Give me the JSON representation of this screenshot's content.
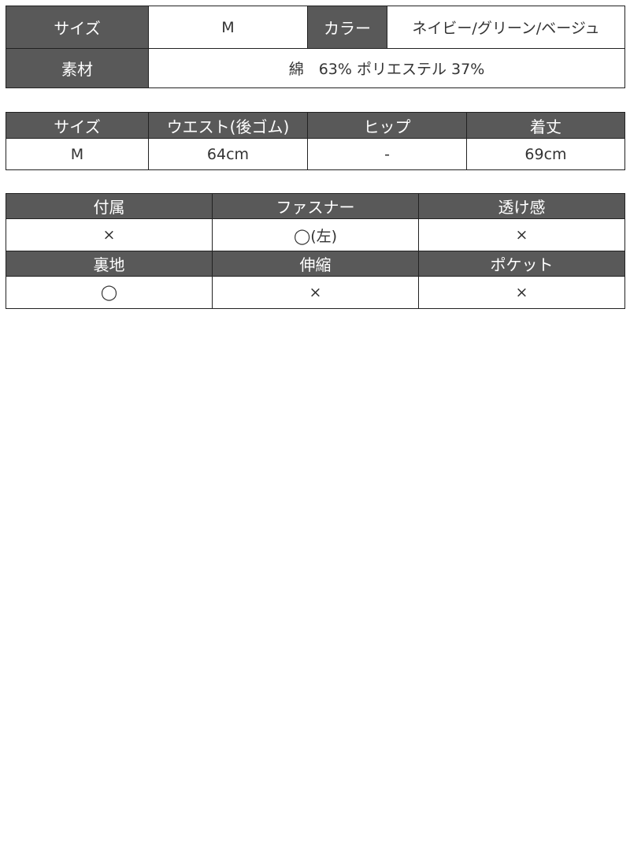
{
  "basic": {
    "size_label": "サイズ",
    "size_value": "M",
    "color_label": "カラー",
    "color_value": "ネイビー/グリーン/ベージュ",
    "material_label": "素材",
    "material_value": "綿　63% ポリエステル 37%"
  },
  "measurements": {
    "headers": [
      "サイズ",
      "ウエスト(後ゴム)",
      "ヒップ",
      "着丈"
    ],
    "row": [
      "M",
      "64cm",
      "-",
      "69cm"
    ]
  },
  "details": {
    "headers1": [
      "付属",
      "ファスナー",
      "透け感"
    ],
    "values1": [
      "×",
      "◯(左)",
      "×"
    ],
    "headers2": [
      "裏地",
      "伸縮",
      "ポケット"
    ],
    "values2": [
      "◯",
      "×",
      "×"
    ]
  },
  "colors": {
    "header_bg": "#595959",
    "border": "#222222"
  }
}
